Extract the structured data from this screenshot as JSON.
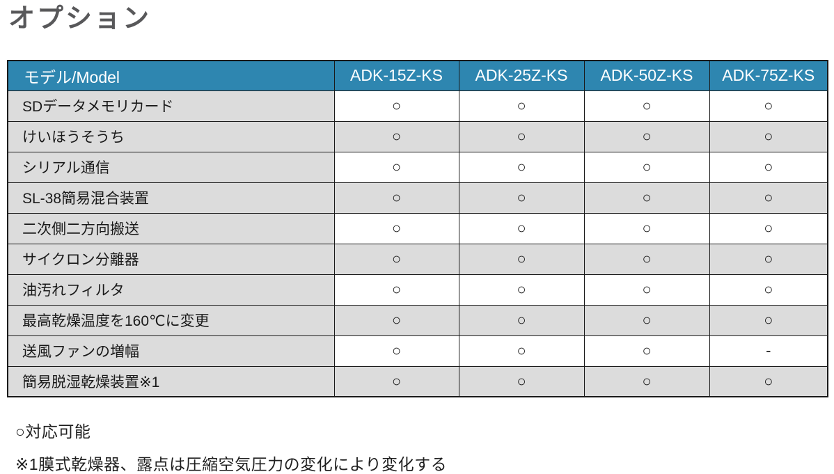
{
  "page": {
    "title": "オプション"
  },
  "colors": {
    "header_bg": "#2e86b0",
    "header_text": "#ffffff",
    "row_alt_bg": "#dcdcdc",
    "border": "#1a1a1a",
    "title_text": "#58585a"
  },
  "table": {
    "header": {
      "model_label": "モデル/Model",
      "columns": [
        "ADK-15Z-KS",
        "ADK-25Z-KS",
        "ADK-50Z-KS",
        "ADK-75Z-KS"
      ]
    },
    "rows": [
      {
        "label": "SDデータメモリカード",
        "values": [
          "○",
          "○",
          "○",
          "○"
        ]
      },
      {
        "label": "けいほうそうち",
        "values": [
          "○",
          "○",
          "○",
          "○"
        ]
      },
      {
        "label": "シリアル通信",
        "values": [
          "○",
          "○",
          "○",
          "○"
        ]
      },
      {
        "label": "SL-38簡易混合装置",
        "values": [
          "○",
          "○",
          "○",
          "○"
        ]
      },
      {
        "label": "二次側二方向搬送",
        "values": [
          "○",
          "○",
          "○",
          "○"
        ]
      },
      {
        "label": "サイクロン分離器",
        "values": [
          "○",
          "○",
          "○",
          "○"
        ]
      },
      {
        "label": "油汚れフィルタ",
        "values": [
          "○",
          "○",
          "○",
          "○"
        ]
      },
      {
        "label": "最高乾燥温度を160℃に変更",
        "values": [
          "○",
          "○",
          "○",
          "○"
        ]
      },
      {
        "label": "送風ファンの増幅",
        "values": [
          "○",
          "○",
          "○",
          "-"
        ]
      },
      {
        "label": "簡易脱湿乾燥装置※1",
        "values": [
          "○",
          "○",
          "○",
          "○"
        ]
      }
    ]
  },
  "legend": {
    "available": "○対応可能",
    "note1": "※1膜式乾燥器、露点は圧縮空気圧力の変化により変化する"
  }
}
